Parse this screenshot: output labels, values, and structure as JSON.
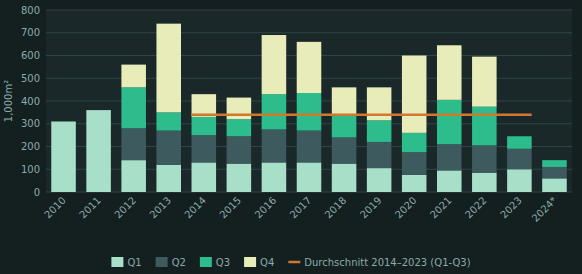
{
  "chart_data": {
    "type": "bar",
    "stacked": true,
    "categories": [
      "2010",
      "2011",
      "2012",
      "2013",
      "2014",
      "2015",
      "2016",
      "2017",
      "2018",
      "2019",
      "2020",
      "2021",
      "2022",
      "2023",
      "2024*"
    ],
    "series": [
      {
        "name": "Q1",
        "color": "#a8dfc9",
        "values": [
          310,
          360,
          140,
          120,
          130,
          125,
          130,
          130,
          125,
          105,
          75,
          95,
          85,
          100,
          60
        ]
      },
      {
        "name": "Q2",
        "color": "#3d5a5e",
        "values": [
          0,
          0,
          140,
          150,
          120,
          120,
          145,
          140,
          115,
          115,
          100,
          115,
          120,
          90,
          50
        ]
      },
      {
        "name": "Q3",
        "color": "#2dbd8c",
        "values": [
          0,
          0,
          180,
          80,
          80,
          75,
          155,
          165,
          100,
          95,
          85,
          195,
          170,
          55,
          30
        ]
      },
      {
        "name": "Q4",
        "color": "#e8ecb8",
        "values": [
          0,
          0,
          100,
          390,
          100,
          95,
          260,
          225,
          120,
          145,
          340,
          240,
          220,
          0,
          0
        ]
      },
      {
        "name": "Durchschnitt 2014–2023 (Q1-Q3)",
        "type": "line",
        "color": "#d07830",
        "values": [
          null,
          null,
          null,
          null,
          340,
          340,
          340,
          340,
          340,
          340,
          340,
          340,
          340,
          340,
          null
        ]
      }
    ],
    "y_label": "1,000m²",
    "ylim": [
      0,
      800
    ],
    "yticks": [
      0,
      100,
      200,
      300,
      400,
      500,
      600,
      700,
      800
    ],
    "grid": true,
    "legend": "bottom"
  }
}
